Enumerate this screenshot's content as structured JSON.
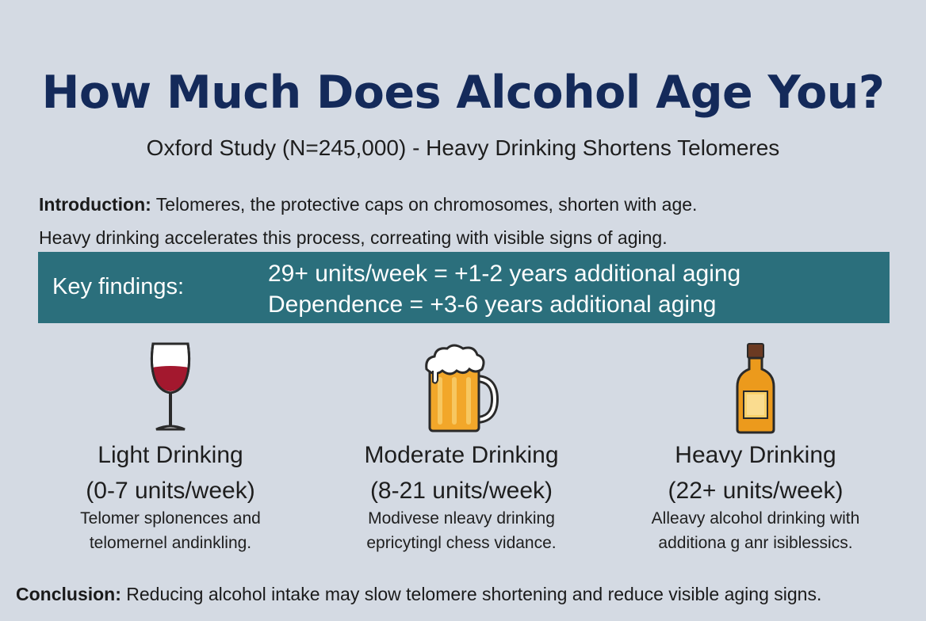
{
  "title": "How Much Does Alcohol Age You?",
  "subtitle": "Oxford Study (N=245,000) - Heavy Drinking Shortens Telomeres",
  "intro": {
    "label": "Introduction:",
    "line1": " Telomeres, the protective caps on chromosomes, shorten with age.",
    "line2": "Heavy drinking accelerates this process, correating with visible signs of aging."
  },
  "key_findings": {
    "label": "Key findings:",
    "items": [
      "29+ units/week = +1-2 years additional aging",
      "Dependence = +3-6 years additional aging"
    ]
  },
  "categories": [
    {
      "icon": "wine-glass-icon",
      "title": "Light Drinking",
      "range": "(0-7 units/week)",
      "desc_line1": "Telomer splonences and",
      "desc_line2": "telomernel andinkling."
    },
    {
      "icon": "beer-mug-icon",
      "title": "Moderate Drinking",
      "range": "(8-21 units/week)",
      "desc_line1": "Modivese nleavy drinking",
      "desc_line2": "epricytingl chess vidance."
    },
    {
      "icon": "liquor-bottle-icon",
      "title": "Heavy Drinking",
      "range": "(22+ units/week)",
      "desc_line1": "Alleavy alcohol drinking with",
      "desc_line2": "additiona g anr isiblessics."
    }
  ],
  "conclusion": {
    "label": "Conclusion:",
    "text": " Reducing alcohol intake may slow telomere shortening and reduce visible aging signs."
  },
  "colors": {
    "background": "#d4dae3",
    "title": "#142a5a",
    "findings_bar": "#2b6f7c",
    "wine": "#a3182e",
    "beer": "#f2a72a",
    "whisky": "#ec9a1c"
  }
}
